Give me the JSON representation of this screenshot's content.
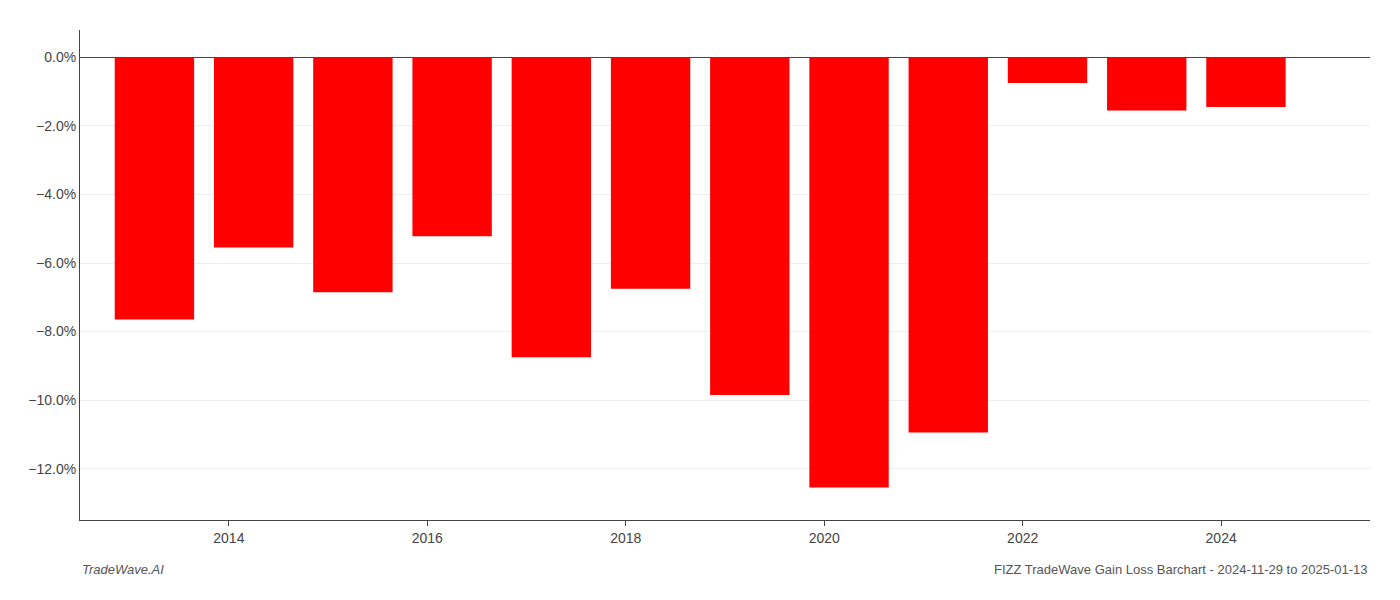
{
  "chart_data": {
    "type": "bar",
    "x": [
      2013.25,
      2014.25,
      2015.25,
      2016.25,
      2017.25,
      2018.25,
      2019.25,
      2020.25,
      2021.25,
      2022.25,
      2023.25,
      2024.25
    ],
    "values": [
      -7.65,
      -5.55,
      -6.85,
      -5.22,
      -8.75,
      -6.75,
      -9.85,
      -12.55,
      -10.95,
      -0.75,
      -1.55,
      -1.45
    ],
    "color": "#ff0000",
    "xlim": [
      2012.5,
      2025.5
    ],
    "xticks": [
      2014,
      2016,
      2018,
      2020,
      2022,
      2024
    ],
    "ylim": [
      -13.5,
      0.8
    ],
    "yticks": [
      {
        "value": 0.0,
        "label": "0.0%"
      },
      {
        "value": -2.0,
        "label": "−2.0%"
      },
      {
        "value": -4.0,
        "label": "−4.0%"
      },
      {
        "value": -6.0,
        "label": "−6.0%"
      },
      {
        "value": -8.0,
        "label": "−8.0%"
      },
      {
        "value": -10.0,
        "label": "−10.0%"
      },
      {
        "value": -12.0,
        "label": "−12.0%"
      }
    ],
    "grid": true,
    "annotations": [
      "TradeWave.AI",
      "FIZZ TradeWave Gain Loss Barchart - 2024-11-29 to 2025-01-13"
    ]
  }
}
